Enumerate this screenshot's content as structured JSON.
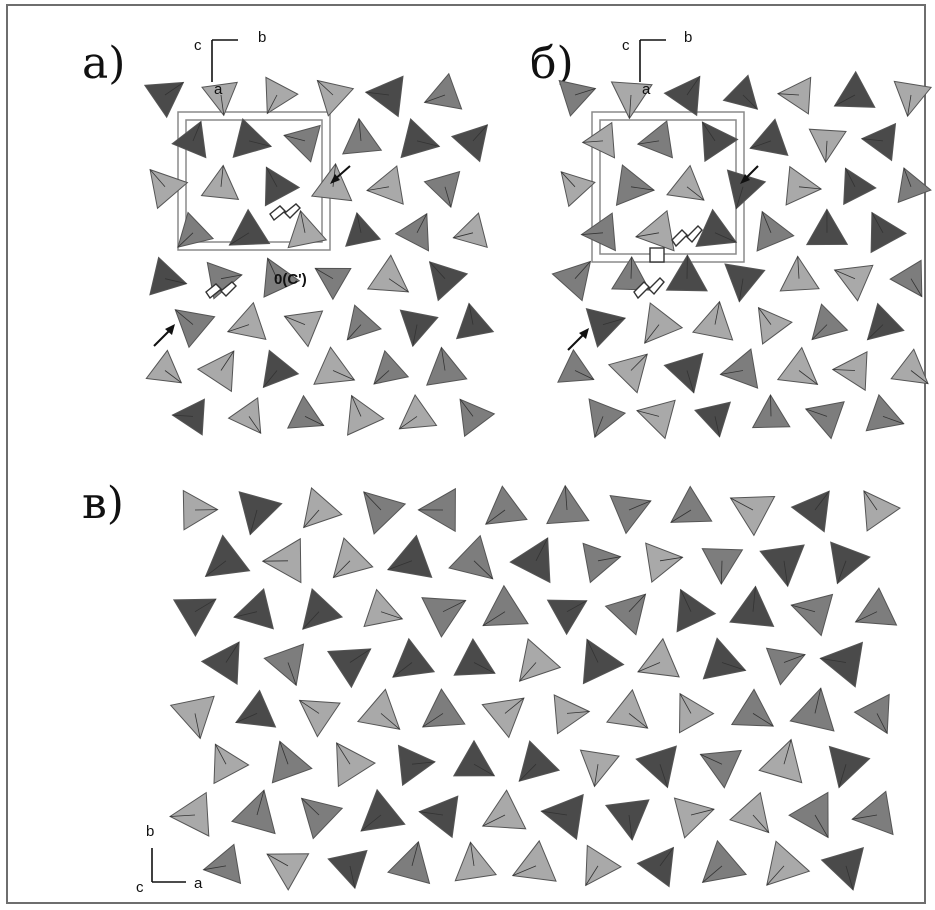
{
  "panels": {
    "a": {
      "label": "а)",
      "axes": {
        "top_left": "c",
        "top_right": "b",
        "bottom": "a"
      },
      "annotation": "0(C')"
    },
    "b": {
      "label": "б)",
      "axes": {
        "top_left": "c",
        "top_right": "b",
        "bottom": "a"
      }
    },
    "c": {
      "label": "в)",
      "axes": {
        "up": "b",
        "left": "c",
        "right": "a"
      }
    }
  },
  "colors": {
    "dark": "#4a4a4a",
    "medium": "#7d7d7d",
    "light": "#a9a9a9",
    "border": "#6e6e6e"
  }
}
